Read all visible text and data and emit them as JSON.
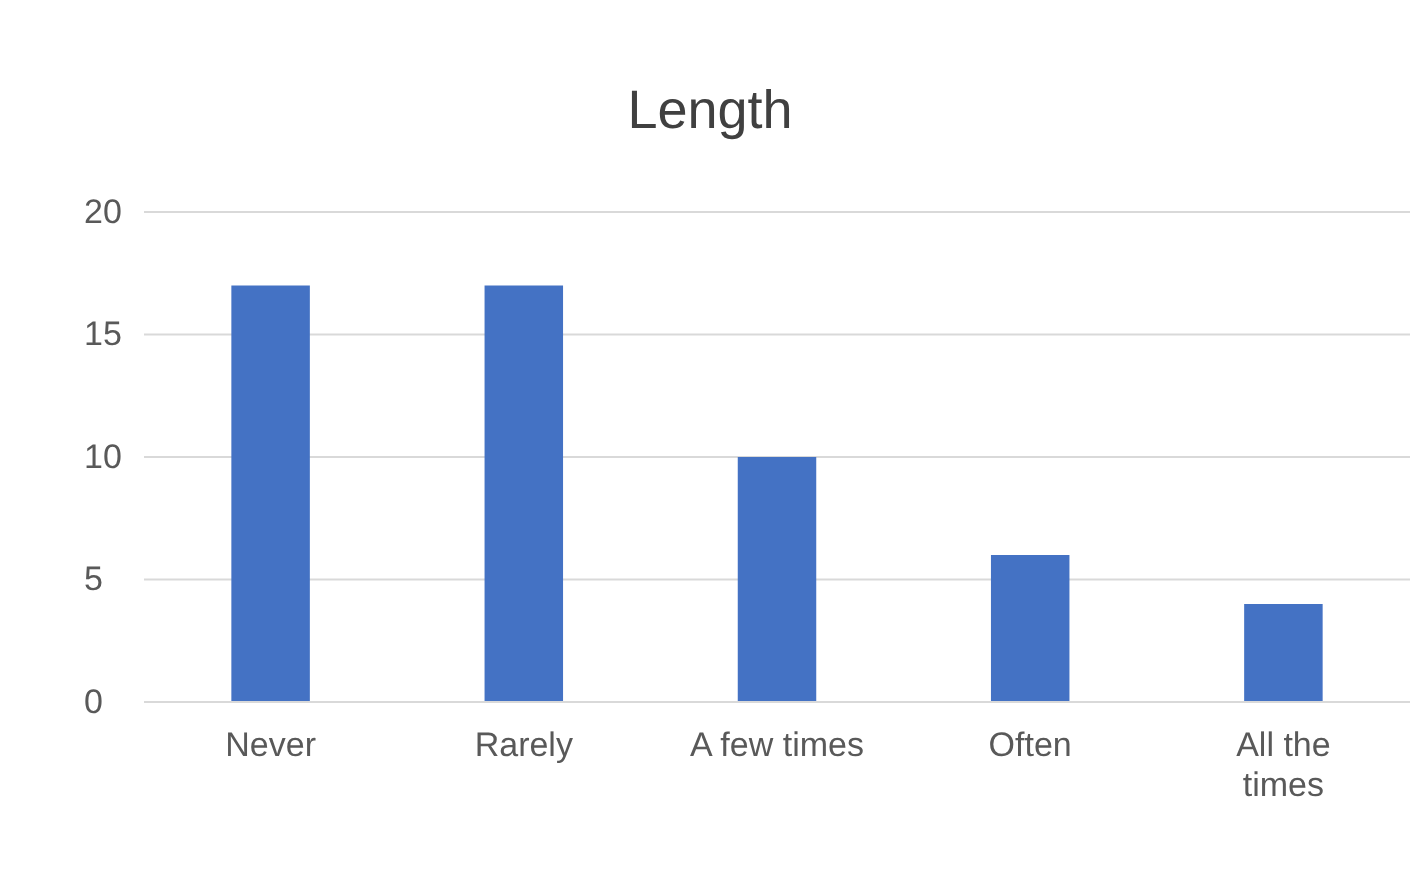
{
  "chart_data": {
    "type": "bar",
    "title": "Length",
    "categories": [
      "Never",
      "Rarely",
      "A few times",
      "Often",
      "All the times"
    ],
    "values": [
      17,
      17,
      10,
      6,
      4
    ],
    "color": "#4472c4",
    "ylim": [
      0,
      20
    ],
    "yticks": [
      0,
      5,
      10,
      15,
      20
    ],
    "grid": "y"
  }
}
